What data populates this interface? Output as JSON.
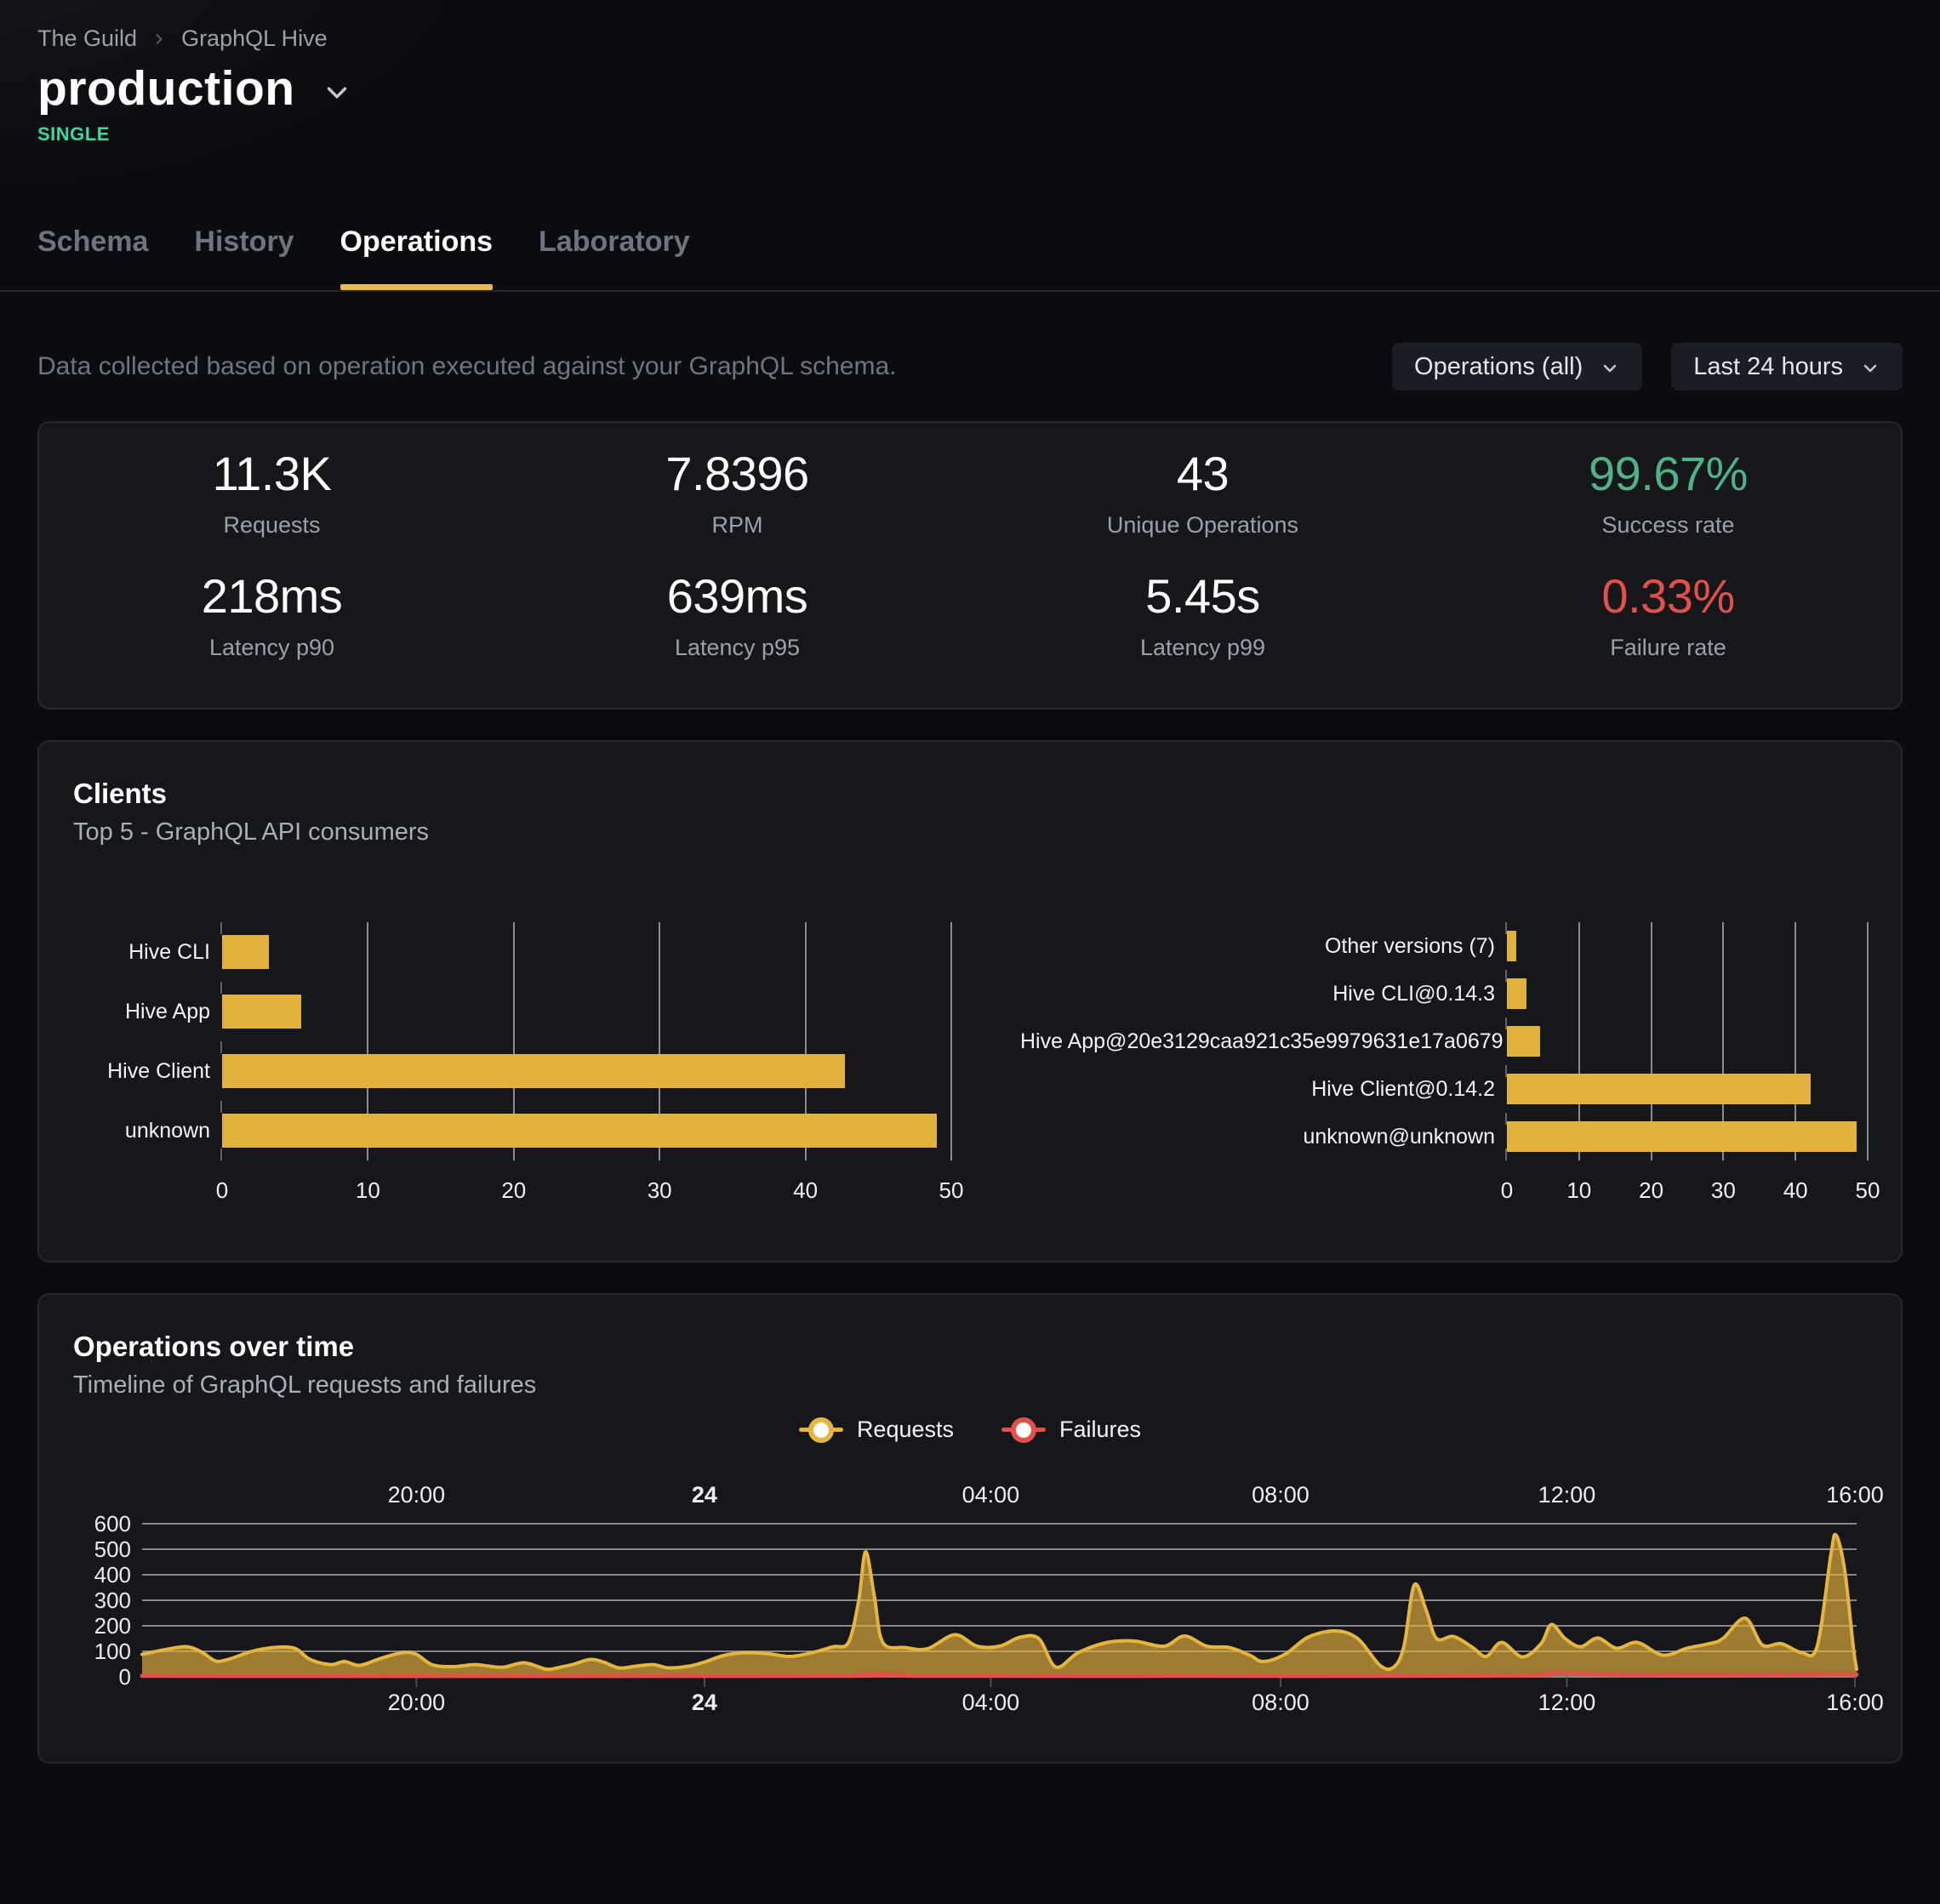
{
  "header": {
    "breadcrumb": [
      "The Guild",
      "GraphQL Hive"
    ],
    "title": "production",
    "badge": "SINGLE"
  },
  "tabs": [
    {
      "label": "Schema",
      "active": false
    },
    {
      "label": "History",
      "active": false
    },
    {
      "label": "Operations",
      "active": true
    },
    {
      "label": "Laboratory",
      "active": false
    }
  ],
  "controls": {
    "description": "Data collected based on operation executed against your GraphQL schema.",
    "operations_filter": "Operations (all)",
    "time_range": "Last 24 hours"
  },
  "stats": [
    {
      "value": "11.3K",
      "label": "Requests",
      "color": "#ffffff"
    },
    {
      "value": "7.8396",
      "label": "RPM",
      "color": "#ffffff"
    },
    {
      "value": "43",
      "label": "Unique Operations",
      "color": "#ffffff"
    },
    {
      "value": "99.67%",
      "label": "Success rate",
      "color": "#50b287"
    },
    {
      "value": "218ms",
      "label": "Latency p90",
      "color": "#ffffff"
    },
    {
      "value": "639ms",
      "label": "Latency p95",
      "color": "#ffffff"
    },
    {
      "value": "5.45s",
      "label": "Latency p99",
      "color": "#ffffff"
    },
    {
      "value": "0.33%",
      "label": "Failure rate",
      "color": "#e25049"
    }
  ],
  "clients": {
    "title": "Clients",
    "subtitle": "Top 5 - GraphQL API consumers",
    "chart_data": [
      {
        "type": "bar",
        "orientation": "horizontal",
        "categories": [
          "Hive CLI",
          "Hive App",
          "Hive Client",
          "unknown"
        ],
        "values": [
          3.2,
          5.4,
          42.7,
          49.0
        ],
        "xlim": [
          0,
          50
        ],
        "xticks": [
          0,
          10,
          20,
          30,
          40,
          50
        ],
        "bar_color": "#e3b23c",
        "grid": true
      },
      {
        "type": "bar",
        "orientation": "horizontal",
        "categories": [
          "Other versions (7)",
          "Hive CLI@0.14.3",
          "Hive App@20e3129caa921c35e9979631e17a0679",
          "Hive Client@0.14.2",
          "unknown@unknown"
        ],
        "values": [
          1.3,
          2.7,
          4.6,
          42.1,
          48.5
        ],
        "xlim": [
          0,
          50
        ],
        "xticks": [
          0,
          10,
          20,
          30,
          40,
          50
        ],
        "bar_color": "#e3b23c",
        "grid": true
      }
    ]
  },
  "operations_over_time": {
    "title": "Operations over time",
    "subtitle": "Timeline of GraphQL requests and failures",
    "legend": [
      {
        "label": "Requests",
        "color": "#e6b53e"
      },
      {
        "label": "Failures",
        "color": "#e25049"
      }
    ],
    "chart_data": {
      "type": "area",
      "ylim": [
        0,
        600
      ],
      "yticks": [
        0,
        100,
        200,
        300,
        400,
        500,
        600
      ],
      "grid": true,
      "legend_position": "top-center",
      "xticks": [
        {
          "label": "20:00",
          "pos": 0.16,
          "bold": false
        },
        {
          "label": "24",
          "pos": 0.328,
          "bold": true
        },
        {
          "label": "04:00",
          "pos": 0.495,
          "bold": false
        },
        {
          "label": "08:00",
          "pos": 0.664,
          "bold": false
        },
        {
          "label": "12:00",
          "pos": 0.831,
          "bold": false
        },
        {
          "label": "16:00",
          "pos": 0.999,
          "bold": false
        }
      ],
      "series": [
        {
          "name": "Requests",
          "color": "#e6b53e",
          "fill": "rgba(227,178,60,0.66)",
          "points": [
            [
              0.0,
              88
            ],
            [
              0.013,
              106
            ],
            [
              0.026,
              118
            ],
            [
              0.035,
              96
            ],
            [
              0.043,
              62
            ],
            [
              0.051,
              70
            ],
            [
              0.064,
              100
            ],
            [
              0.077,
              115
            ],
            [
              0.089,
              112
            ],
            [
              0.098,
              68
            ],
            [
              0.11,
              48
            ],
            [
              0.118,
              60
            ],
            [
              0.127,
              45
            ],
            [
              0.139,
              72
            ],
            [
              0.152,
              95
            ],
            [
              0.16,
              88
            ],
            [
              0.169,
              48
            ],
            [
              0.181,
              40
            ],
            [
              0.194,
              48
            ],
            [
              0.202,
              42
            ],
            [
              0.211,
              38
            ],
            [
              0.223,
              55
            ],
            [
              0.236,
              30
            ],
            [
              0.244,
              38
            ],
            [
              0.252,
              50
            ],
            [
              0.261,
              68
            ],
            [
              0.269,
              58
            ],
            [
              0.278,
              35
            ],
            [
              0.286,
              40
            ],
            [
              0.298,
              48
            ],
            [
              0.307,
              35
            ],
            [
              0.319,
              42
            ],
            [
              0.328,
              58
            ],
            [
              0.34,
              85
            ],
            [
              0.353,
              95
            ],
            [
              0.366,
              90
            ],
            [
              0.378,
              80
            ],
            [
              0.391,
              95
            ],
            [
              0.403,
              118
            ],
            [
              0.412,
              135
            ],
            [
              0.418,
              300
            ],
            [
              0.422,
              490
            ],
            [
              0.427,
              320
            ],
            [
              0.432,
              135
            ],
            [
              0.445,
              115
            ],
            [
              0.458,
              110
            ],
            [
              0.474,
              165
            ],
            [
              0.487,
              120
            ],
            [
              0.5,
              120
            ],
            [
              0.512,
              155
            ],
            [
              0.523,
              150
            ],
            [
              0.533,
              38
            ],
            [
              0.546,
              95
            ],
            [
              0.563,
              135
            ],
            [
              0.579,
              140
            ],
            [
              0.596,
              120
            ],
            [
              0.608,
              160
            ],
            [
              0.621,
              120
            ],
            [
              0.634,
              115
            ],
            [
              0.646,
              85
            ],
            [
              0.654,
              60
            ],
            [
              0.667,
              90
            ],
            [
              0.68,
              155
            ],
            [
              0.696,
              180
            ],
            [
              0.709,
              150
            ],
            [
              0.722,
              45
            ],
            [
              0.73,
              38
            ],
            [
              0.736,
              120
            ],
            [
              0.742,
              360
            ],
            [
              0.749,
              260
            ],
            [
              0.755,
              150
            ],
            [
              0.765,
              158
            ],
            [
              0.776,
              115
            ],
            [
              0.784,
              80
            ],
            [
              0.793,
              135
            ],
            [
              0.805,
              78
            ],
            [
              0.816,
              130
            ],
            [
              0.822,
              205
            ],
            [
              0.83,
              150
            ],
            [
              0.839,
              118
            ],
            [
              0.849,
              152
            ],
            [
              0.86,
              112
            ],
            [
              0.872,
              135
            ],
            [
              0.887,
              85
            ],
            [
              0.901,
              112
            ],
            [
              0.914,
              130
            ],
            [
              0.922,
              150
            ],
            [
              0.935,
              230
            ],
            [
              0.945,
              125
            ],
            [
              0.956,
              130
            ],
            [
              0.968,
              95
            ],
            [
              0.977,
              120
            ],
            [
              0.985,
              480
            ],
            [
              0.988,
              555
            ],
            [
              0.993,
              420
            ],
            [
              0.998,
              120
            ],
            [
              1.0,
              30
            ]
          ]
        },
        {
          "name": "Failures",
          "color": "#e25049",
          "fill": "rgba(110,120,135,0.55)",
          "points": [
            [
              0.0,
              4
            ],
            [
              0.403,
              4
            ],
            [
              0.42,
              13
            ],
            [
              0.432,
              6
            ],
            [
              0.443,
              11
            ],
            [
              0.454,
              4
            ],
            [
              0.6,
              4
            ],
            [
              0.8,
              5
            ],
            [
              0.822,
              17
            ],
            [
              0.843,
              12
            ],
            [
              0.864,
              8
            ],
            [
              0.914,
              7
            ],
            [
              0.956,
              8
            ],
            [
              0.99,
              10
            ],
            [
              1.0,
              9
            ]
          ]
        }
      ]
    }
  },
  "colors": {
    "accent_yellow": "#e8b94b",
    "success_green": "#50b287",
    "failure_red": "#e25049",
    "badge_green": "#38dc9e"
  }
}
